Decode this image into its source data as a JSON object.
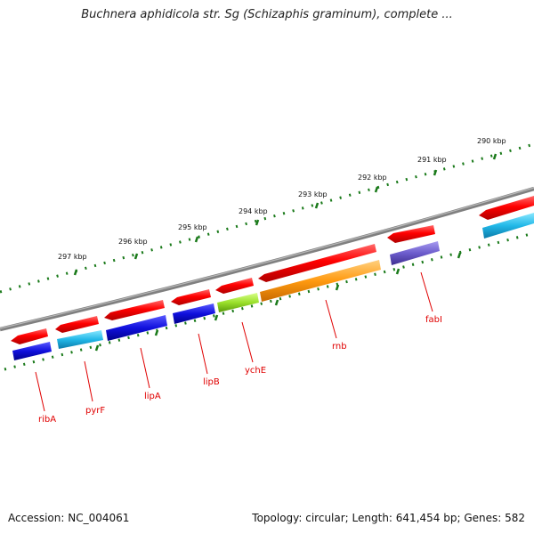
{
  "header": {
    "title": "Buchnera aphidicola str. Sg (Schizaphis graminum), complete ..."
  },
  "footer": {
    "accession": "Accession: NC_004061",
    "summary": "Topology: circular; Length: 641,454 bp; Genes: 582"
  },
  "ruler": {
    "labels": [
      "297 kbp",
      "296 kbp",
      "295 kbp",
      "294 kbp",
      "293 kbp",
      "292 kbp",
      "291 kbp",
      "290 kbp"
    ]
  },
  "genes": [
    {
      "name": "ribA",
      "strand_color": "#e00000",
      "feature_color": "#1010dd"
    },
    {
      "name": "pyrF",
      "strand_color": "#e00000",
      "feature_color": "#22b8e8"
    },
    {
      "name": "lipA",
      "strand_color": "#e00000",
      "feature_color": "#1010dd"
    },
    {
      "name": "lipB",
      "strand_color": "#e00000",
      "feature_color": "#1010dd"
    },
    {
      "name": "ychE",
      "strand_color": "#e00000",
      "feature_color": "#9ae02a"
    },
    {
      "name": "rnb",
      "strand_color": "#e00000",
      "feature_color": "#ff9a10"
    },
    {
      "name": "fabI",
      "strand_color": "#e00000",
      "feature_color": "#6c5ccc"
    },
    {
      "name": "",
      "strand_color": "#e00000",
      "feature_color": "#22b8e8"
    }
  ]
}
